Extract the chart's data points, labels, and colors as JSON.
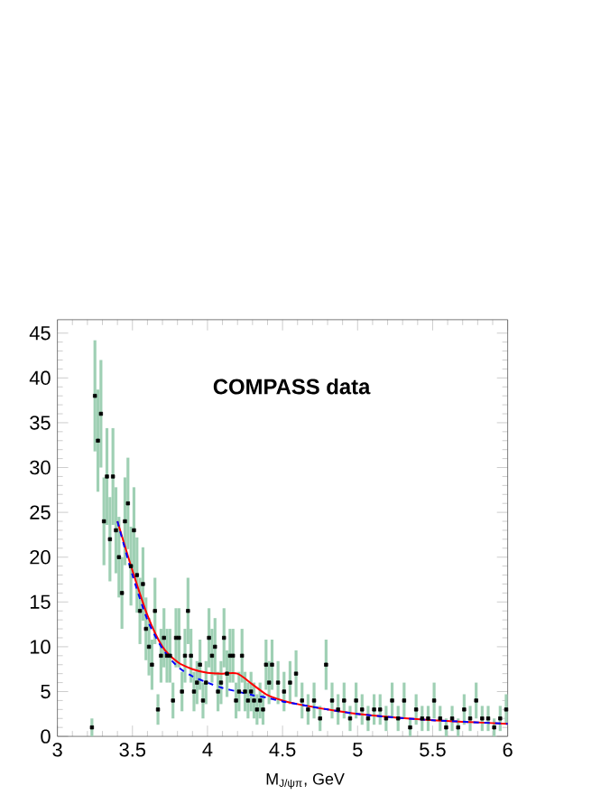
{
  "chart_data": {
    "type": "scatter",
    "xlabel": "M$_{J/ψπ}$, GeV",
    "annotations": [
      "COMPASS data"
    ],
    "xlim": [
      3,
      6
    ],
    "ylim": [
      0,
      46.5
    ],
    "xticks": [
      3,
      3.5,
      4,
      4.5,
      5,
      5.5,
      6
    ],
    "yticks": [
      0,
      5,
      10,
      15,
      20,
      25,
      30,
      35,
      40,
      45
    ],
    "grid": false,
    "series": [
      {
        "color": "#000000",
        "marker": "square",
        "x": [
          3.23,
          3.25,
          3.27,
          3.29,
          3.31,
          3.33,
          3.35,
          3.37,
          3.39,
          3.41,
          3.43,
          3.45,
          3.47,
          3.49,
          3.51,
          3.53,
          3.55,
          3.57,
          3.59,
          3.61,
          3.63,
          3.65,
          3.67,
          3.69,
          3.71,
          3.73,
          3.75,
          3.77,
          3.79,
          3.81,
          3.83,
          3.85,
          3.87,
          3.89,
          3.91,
          3.93,
          3.95,
          3.97,
          3.99,
          4.01,
          4.03,
          4.05,
          4.07,
          4.09,
          4.11,
          4.13,
          4.15,
          4.17,
          4.19,
          4.21,
          4.23,
          4.25,
          4.27,
          4.29,
          4.31,
          4.33,
          4.35,
          4.37,
          4.39,
          4.41,
          4.43,
          4.47,
          4.51,
          4.55,
          4.59,
          4.63,
          4.67,
          4.71,
          4.75,
          4.79,
          4.83,
          4.87,
          4.91,
          4.95,
          4.99,
          5.03,
          5.07,
          5.11,
          5.15,
          5.19,
          5.23,
          5.27,
          5.31,
          5.35,
          5.39,
          5.43,
          5.47,
          5.51,
          5.55,
          5.59,
          5.63,
          5.67,
          5.71,
          5.75,
          5.79,
          5.83,
          5.87,
          5.91,
          5.95,
          5.99
        ],
        "values": [
          1,
          38,
          33,
          36,
          24,
          29,
          22,
          29,
          23,
          20,
          16,
          24,
          26,
          19,
          23,
          18,
          14,
          17,
          12,
          10,
          8,
          14,
          3,
          9,
          11,
          9,
          9,
          4,
          11,
          11,
          5,
          9,
          14,
          9,
          5,
          6,
          8,
          4,
          6,
          11,
          9,
          10,
          5,
          6,
          11,
          7,
          9,
          9,
          4,
          5,
          9,
          5,
          4,
          5,
          4,
          3,
          4,
          3,
          8,
          6,
          8,
          6,
          5,
          6,
          7,
          4,
          3,
          4,
          2,
          8,
          4,
          3,
          4,
          2,
          4,
          3,
          2,
          3,
          3,
          2,
          4,
          2,
          4,
          1,
          3,
          2,
          2,
          4,
          2,
          1,
          2,
          1,
          3,
          2,
          4,
          2,
          2,
          1,
          2,
          3
        ],
        "errors": [
          1,
          6.2,
          5.7,
          6,
          4.9,
          5.4,
          4.7,
          5.4,
          4.8,
          4.5,
          4,
          4.9,
          5.1,
          4.4,
          4.8,
          4.2,
          3.7,
          4.1,
          3.5,
          3.2,
          2.8,
          3.7,
          1.7,
          3,
          3.3,
          3,
          3,
          2,
          3.3,
          3.3,
          2.2,
          3,
          3.7,
          3,
          2.2,
          2.4,
          2.8,
          2,
          2.4,
          3.3,
          3,
          3.2,
          2.2,
          2.4,
          3.3,
          2.6,
          3,
          3,
          2,
          2.2,
          3,
          2.2,
          2,
          2.2,
          2,
          1.7,
          2,
          1.7,
          2.8,
          2.4,
          2.8,
          2.4,
          2.2,
          2.4,
          2.6,
          2,
          1.7,
          2,
          1.4,
          2.8,
          2,
          1.7,
          2,
          1.4,
          2,
          1.7,
          1.4,
          1.7,
          1.7,
          1.4,
          2,
          1.4,
          2,
          1,
          1.7,
          1.4,
          1.4,
          2,
          1.4,
          1,
          1.4,
          1,
          1.7,
          1.4,
          2,
          1.4,
          1.4,
          1,
          1.4,
          1.7
        ]
      },
      {
        "type": "line",
        "color": "#ff0000",
        "line_style": "solid",
        "x": [
          3.4,
          3.5,
          3.6,
          3.7,
          3.8,
          3.9,
          4.0,
          4.1,
          4.2,
          4.3,
          4.4,
          4.5,
          4.6,
          4.8,
          5.0,
          5.25,
          5.5,
          5.75,
          6.0
        ],
        "values": [
          24,
          18.5,
          13.5,
          10,
          8.3,
          7.5,
          7.1,
          7,
          7,
          5.8,
          4.6,
          4,
          3.6,
          3,
          2.5,
          2.1,
          1.8,
          1.6,
          1.4
        ]
      },
      {
        "type": "line",
        "color": "#0000ff",
        "line_style": "dashed",
        "x": [
          3.4,
          3.5,
          3.6,
          3.7,
          3.8,
          3.9,
          4.0,
          4.1,
          4.2,
          4.3,
          4.4,
          4.5,
          4.6,
          4.8,
          5.0,
          5.25,
          5.5,
          5.75,
          6.0
        ],
        "values": [
          24,
          18,
          13,
          9.8,
          7.8,
          6.7,
          6,
          5.4,
          5,
          4.6,
          4.3,
          3.9,
          3.6,
          3,
          2.5,
          2.1,
          1.8,
          1.6,
          1.4
        ]
      }
    ]
  }
}
